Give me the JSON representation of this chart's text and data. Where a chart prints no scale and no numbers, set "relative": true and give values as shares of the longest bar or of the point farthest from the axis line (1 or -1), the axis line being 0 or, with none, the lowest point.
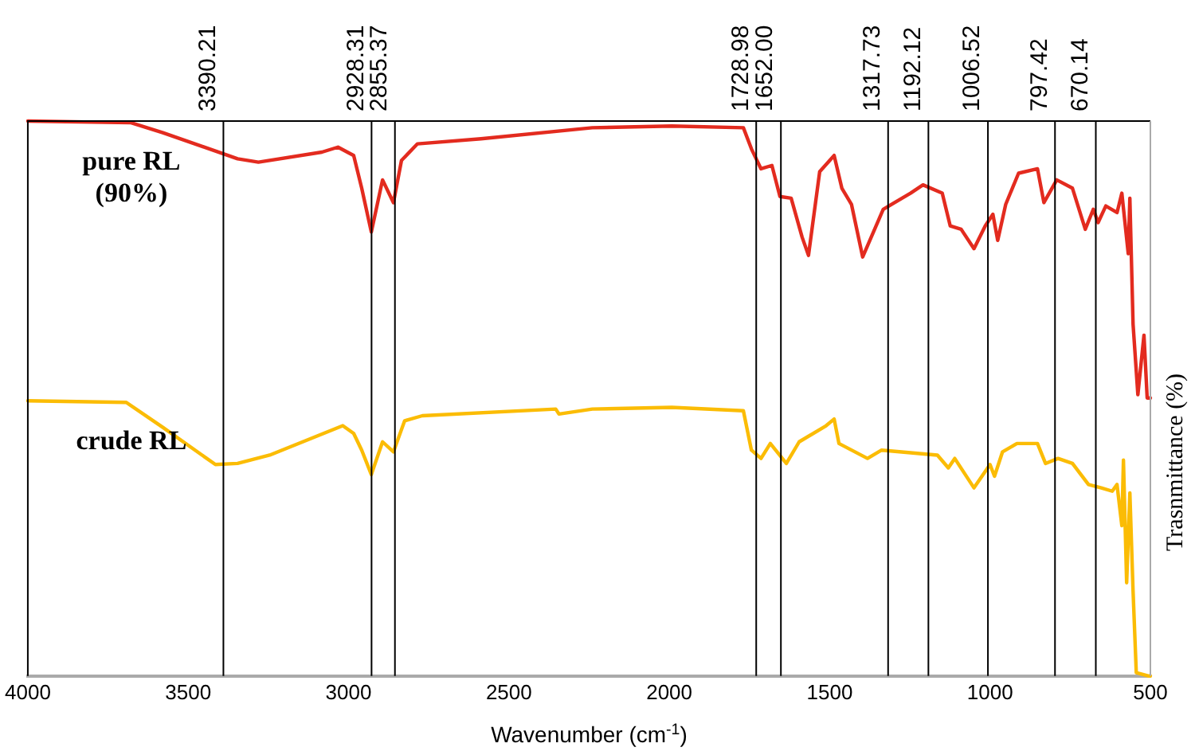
{
  "chart_data": {
    "type": "line",
    "xlabel": "Wavenumber (cm$^{-1}$)",
    "ylabel": "Trasnmittance (%)",
    "relative": true,
    "xlim": [
      4000,
      500
    ],
    "xticks": [
      4000,
      3500,
      3000,
      2500,
      2000,
      1500,
      1000,
      500
    ],
    "grid": false,
    "legend": false,
    "marker": "none",
    "line_style": "solid",
    "series": [
      {
        "name": "pure RL (90%)",
        "color": "#e32b1f",
        "x": [
          4000,
          3678,
          3579,
          3346,
          3281,
          3083,
          3033,
          2984,
          2959,
          2929,
          2894,
          2860,
          2835,
          2785,
          2587,
          2240,
          1992,
          1769,
          1744,
          1714,
          1680,
          1655,
          1620,
          1586,
          1566,
          1531,
          1486,
          1462,
          1432,
          1397,
          1333,
          1248,
          1209,
          1149,
          1124,
          1090,
          1050,
          1015,
          991,
          976,
          951,
          911,
          852,
          832,
          792,
          743,
          703,
          678,
          663,
          639,
          604,
          589,
          569,
          564,
          554,
          539,
          520,
          510,
          500
        ],
        "values": [
          1.0,
          0.997,
          0.979,
          0.932,
          0.926,
          0.944,
          0.953,
          0.938,
          0.879,
          0.8,
          0.894,
          0.853,
          0.929,
          0.959,
          0.968,
          0.988,
          0.991,
          0.988,
          0.95,
          0.914,
          0.92,
          0.864,
          0.861,
          0.791,
          0.758,
          0.909,
          0.938,
          0.879,
          0.85,
          0.755,
          0.841,
          0.87,
          0.885,
          0.87,
          0.811,
          0.805,
          0.77,
          0.811,
          0.832,
          0.785,
          0.85,
          0.906,
          0.914,
          0.853,
          0.894,
          0.879,
          0.805,
          0.841,
          0.817,
          0.847,
          0.835,
          0.87,
          0.761,
          0.861,
          0.634,
          0.507,
          0.614,
          0.501,
          0.501
        ]
      },
      {
        "name": "crude RL",
        "color": "#fbbc05",
        "x": [
          4000,
          3693,
          3579,
          3415,
          3346,
          3246,
          3018,
          2984,
          2959,
          2929,
          2894,
          2860,
          2825,
          2770,
          2354,
          2344,
          2240,
          1992,
          1769,
          1744,
          1714,
          1685,
          1635,
          1595,
          1511,
          1486,
          1471,
          1382,
          1338,
          1164,
          1130,
          1110,
          1050,
          1000,
          986,
          961,
          916,
          852,
          827,
          788,
          743,
          693,
          653,
          619,
          604,
          589,
          584,
          574,
          564,
          554,
          544,
          505,
          500
        ],
        "values": [
          0.496,
          0.493,
          0.448,
          0.381,
          0.383,
          0.398,
          0.451,
          0.437,
          0.407,
          0.363,
          0.422,
          0.404,
          0.46,
          0.469,
          0.481,
          0.472,
          0.481,
          0.484,
          0.478,
          0.407,
          0.392,
          0.419,
          0.383,
          0.422,
          0.451,
          0.463,
          0.419,
          0.392,
          0.407,
          0.398,
          0.375,
          0.392,
          0.339,
          0.381,
          0.36,
          0.404,
          0.419,
          0.419,
          0.383,
          0.392,
          0.383,
          0.345,
          0.339,
          0.333,
          0.345,
          0.271,
          0.389,
          0.168,
          0.33,
          0.153,
          0.006,
          0,
          0
        ]
      }
    ],
    "ref_lines": [
      {
        "axis": "x",
        "value": 3390.21,
        "label": "3390.21",
        "color": "#000000"
      },
      {
        "axis": "x",
        "value": 2928.31,
        "label": "2928.31",
        "color": "#000000"
      },
      {
        "axis": "x",
        "value": 2855.37,
        "label": "2855.37",
        "color": "#000000"
      },
      {
        "axis": "x",
        "value": 1728.98,
        "label": "1728.98",
        "color": "#000000"
      },
      {
        "axis": "x",
        "value": 1652.0,
        "label": "1652.00",
        "color": "#000000"
      },
      {
        "axis": "x",
        "value": 1317.73,
        "label": "1317.73",
        "color": "#000000"
      },
      {
        "axis": "x",
        "value": 1192.12,
        "label": "1192.12",
        "color": "#000000"
      },
      {
        "axis": "x",
        "value": 1006.52,
        "label": "1006.52",
        "color": "#000000"
      },
      {
        "axis": "x",
        "value": 797.42,
        "label": "797.42",
        "color": "#000000"
      },
      {
        "axis": "x",
        "value": 670.14,
        "label": "670.14",
        "color": "#000000"
      }
    ]
  }
}
